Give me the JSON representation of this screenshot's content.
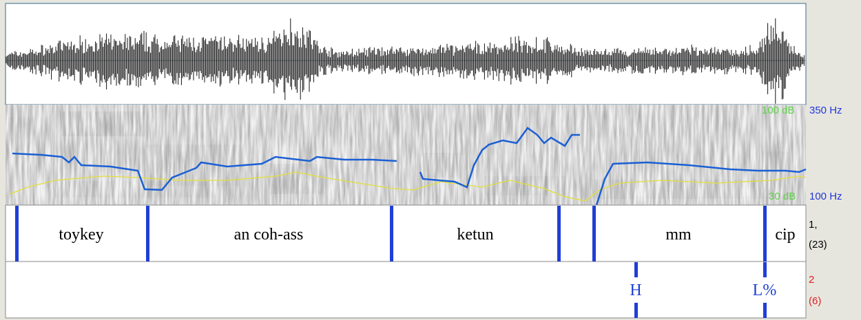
{
  "spectrogram": {
    "top_db": "100 dB",
    "top_hz": "350 Hz",
    "bottom_db": "30 dB",
    "bottom_hz": "100 Hz"
  },
  "tiers": [
    {
      "name": "1,",
      "count": "(23)",
      "intervals": [
        "toykey",
        "an coh-ass",
        "ketun",
        "mm",
        "cip"
      ]
    },
    {
      "name": "2",
      "count": "(6)",
      "points": [
        "H",
        "L%"
      ]
    }
  ]
}
